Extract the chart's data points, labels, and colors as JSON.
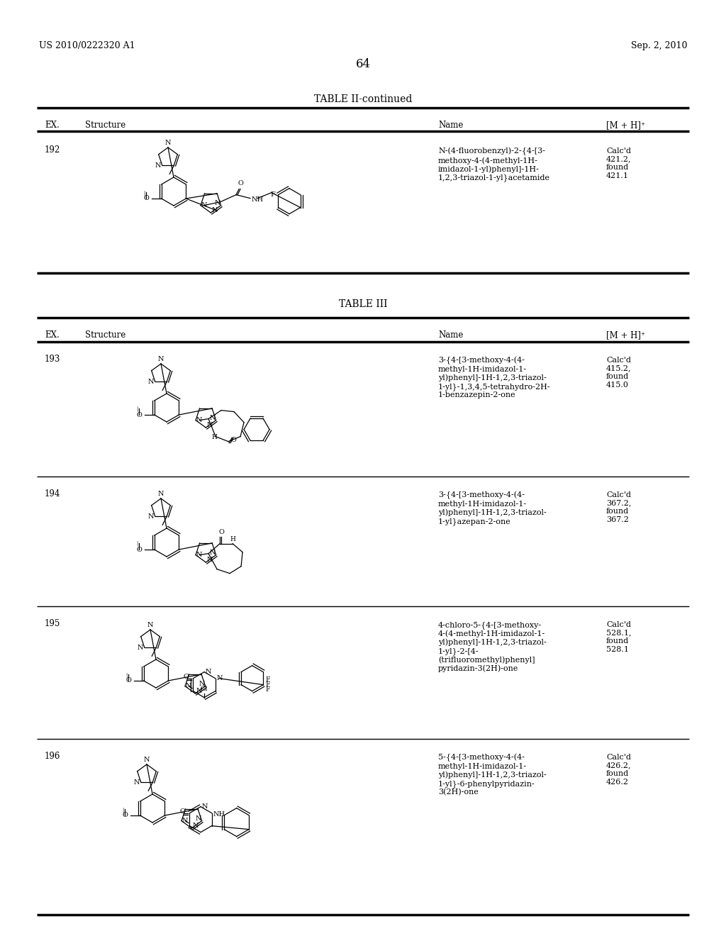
{
  "page_header_left": "US 2010/0222320 A1",
  "page_header_right": "Sep. 2, 2010",
  "page_number": "64",
  "table2_title": "TABLE II-continued",
  "table3_title": "TABLE III",
  "entries": [
    {
      "ex": "192",
      "name": "N-(4-fluorobenzyl)-2-{4-[3-\nmethoxy-4-(4-methyl-1H-\nimidazol-1-yl)phenyl]-1H-\n1,2,3-triazol-1-yl}acetamide",
      "mh": "Calc'd\n421.2,\nfound\n421.1",
      "table": 2
    },
    {
      "ex": "193",
      "name": "3-{4-[3-methoxy-4-(4-\nmethyl-1H-imidazol-1-\nyl)phenyl]-1H-1,2,3-triazol-\n1-yl}-1,3,4,5-tetrahydro-2H-\n1-benzazepin-2-one",
      "mh": "Calc'd\n415.2,\nfound\n415.0",
      "table": 3
    },
    {
      "ex": "194",
      "name": "3-{4-[3-methoxy-4-(4-\nmethyl-1H-imidazol-1-\nyl)phenyl]-1H-1,2,3-triazol-\n1-yl}azepan-2-one",
      "mh": "Calc'd\n367.2,\nfound\n367.2",
      "table": 3
    },
    {
      "ex": "195",
      "name": "4-chloro-5-{4-[3-methoxy-\n4-(4-methyl-1H-imidazol-1-\nyl)phenyl]-1H-1,2,3-triazol-\n1-yl}-2-[4-\n(trifluoromethyl)phenyl]\npyridazin-3(2H)-one",
      "mh": "Calc'd\n528.1,\nfound\n528.1",
      "table": 3
    },
    {
      "ex": "196",
      "name": "5-{4-[3-methoxy-4-(4-\nmethyl-1H-imidazol-1-\nyl)phenyl]-1H-1,2,3-triazol-\n1-yl}-6-phenylpyridazin-\n3(2H)-one",
      "mh": "Calc'd\n426.2,\nfound\n426.2",
      "table": 3
    }
  ],
  "bg_color": "#ffffff",
  "text_color": "#000000"
}
